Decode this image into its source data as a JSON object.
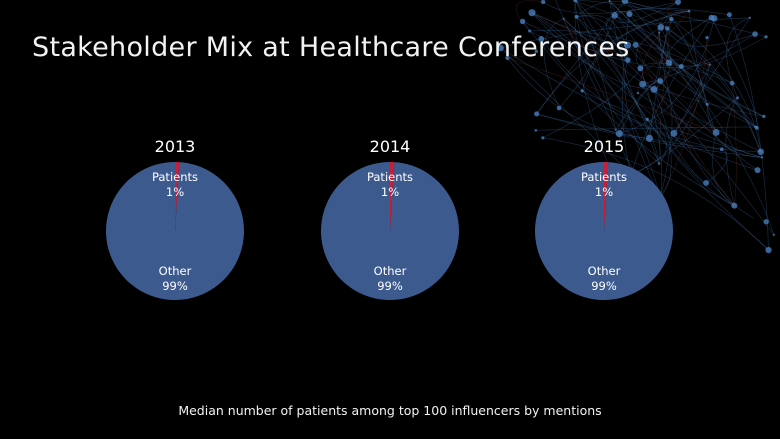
{
  "slide": {
    "title": "Stakeholder Mix at Healthcare Conferences",
    "caption": "Median number of patients among top 100 influencers by mentions"
  },
  "colors": {
    "background": "#000000",
    "other": "#3d5a8f",
    "patients": "#c8203a",
    "text": "#ffffff",
    "network": "#4b86c8"
  },
  "chart_data": [
    {
      "type": "pie",
      "title": "2013",
      "slices": [
        {
          "label": "Patients",
          "value": 1,
          "display": "1%"
        },
        {
          "label": "Other",
          "value": 99,
          "display": "99%"
        }
      ]
    },
    {
      "type": "pie",
      "title": "2014",
      "slices": [
        {
          "label": "Patients",
          "value": 1,
          "display": "1%"
        },
        {
          "label": "Other",
          "value": 99,
          "display": "99%"
        }
      ]
    },
    {
      "type": "pie",
      "title": "2015",
      "slices": [
        {
          "label": "Patients",
          "value": 1,
          "display": "1%"
        },
        {
          "label": "Other",
          "value": 99,
          "display": "99%"
        }
      ]
    }
  ]
}
